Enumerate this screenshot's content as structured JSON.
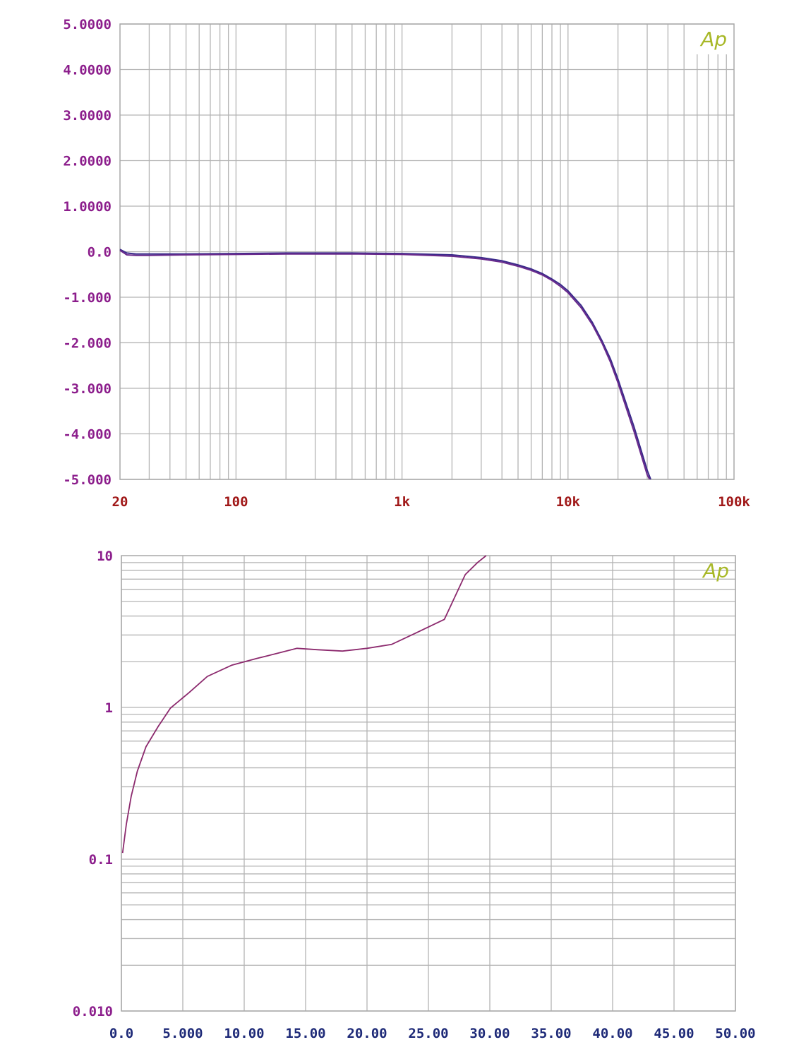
{
  "chart_data": [
    {
      "type": "line",
      "title": "",
      "xlabel": "",
      "ylabel": "",
      "x_scale": "log",
      "xlim": [
        20,
        100000
      ],
      "ylim": [
        -5,
        5
      ],
      "grid": true,
      "logo": "Ap",
      "x_tick_labels": [
        "20",
        "100",
        "1k",
        "10k",
        "100k"
      ],
      "x_tick_values": [
        20,
        100,
        1000,
        10000,
        100000
      ],
      "y_tick_labels": [
        "5.0000",
        "4.0000",
        "3.0000",
        "2.0000",
        "1.0000",
        "0.0",
        "-1.000",
        "-2.000",
        "-3.000",
        "-4.000",
        "-5.000"
      ],
      "y_tick_values": [
        5,
        4,
        3,
        2,
        1,
        0,
        -1,
        -2,
        -3,
        -4,
        -5
      ],
      "colors": {
        "x_tick": "#a01818",
        "y_tick": "#8c1e8c",
        "logo": "#a8b828"
      },
      "series": [
        {
          "color": "#3a2a8a",
          "x": [
            20,
            22,
            25,
            30,
            50,
            100,
            200,
            500,
            1000,
            2000,
            3000,
            4000,
            5000,
            6000,
            7000,
            8000,
            9000,
            10000,
            12000,
            14000,
            16000,
            18000,
            20000,
            25000,
            30000,
            31500
          ],
          "y": [
            0.05,
            -0.03,
            -0.05,
            -0.05,
            -0.05,
            -0.04,
            -0.03,
            -0.03,
            -0.04,
            -0.07,
            -0.13,
            -0.2,
            -0.29,
            -0.38,
            -0.48,
            -0.6,
            -0.72,
            -0.86,
            -1.18,
            -1.55,
            -1.95,
            -2.35,
            -2.8,
            -3.85,
            -4.8,
            -5.0
          ]
        },
        {
          "color": "#6a2a8c",
          "x": [
            20,
            22,
            25,
            30,
            50,
            100,
            200,
            500,
            1000,
            2000,
            3000,
            4000,
            5000,
            6000,
            7000,
            8000,
            9000,
            10000,
            12000,
            14000,
            16000,
            18000,
            20000,
            25000,
            30000,
            31000
          ],
          "y": [
            0.03,
            -0.07,
            -0.08,
            -0.08,
            -0.07,
            -0.06,
            -0.05,
            -0.05,
            -0.06,
            -0.1,
            -0.16,
            -0.23,
            -0.32,
            -0.41,
            -0.51,
            -0.63,
            -0.76,
            -0.9,
            -1.23,
            -1.6,
            -2.0,
            -2.42,
            -2.88,
            -3.95,
            -4.9,
            -5.0
          ]
        }
      ]
    },
    {
      "type": "line",
      "title": "",
      "xlabel": "",
      "ylabel": "",
      "y_scale": "log",
      "xlim": [
        0,
        50
      ],
      "ylim": [
        0.01,
        10
      ],
      "grid": true,
      "logo": "Ap",
      "x_tick_labels": [
        "0.0",
        "5.000",
        "10.00",
        "15.00",
        "20.00",
        "25.00",
        "30.00",
        "35.00",
        "40.00",
        "45.00",
        "50.00"
      ],
      "x_tick_values": [
        0,
        5,
        10,
        15,
        20,
        25,
        30,
        35,
        40,
        45,
        50
      ],
      "y_tick_labels": [
        "10",
        "1",
        "0.1",
        "0.010"
      ],
      "y_tick_values": [
        10,
        1,
        0.1,
        0.01
      ],
      "colors": {
        "x_tick": "#1e2a78",
        "y_tick": "#8c1e8c",
        "logo": "#a8b828"
      },
      "series": [
        {
          "color": "#8c2a6e",
          "x": [
            0.1,
            0.4,
            0.8,
            1.3,
            2.0,
            3.0,
            4.0,
            5.5,
            7.0,
            9.0,
            11.0,
            12.5,
            14.3,
            16.0,
            18.0,
            20.0,
            22.0,
            24.0,
            26.3,
            28.0,
            29.0,
            29.7
          ],
          "y": [
            0.11,
            0.17,
            0.26,
            0.38,
            0.55,
            0.75,
            0.99,
            1.25,
            1.6,
            1.9,
            2.1,
            2.25,
            2.45,
            2.4,
            2.35,
            2.45,
            2.6,
            3.1,
            3.8,
            7.5,
            9.0,
            10.0
          ]
        }
      ]
    }
  ]
}
